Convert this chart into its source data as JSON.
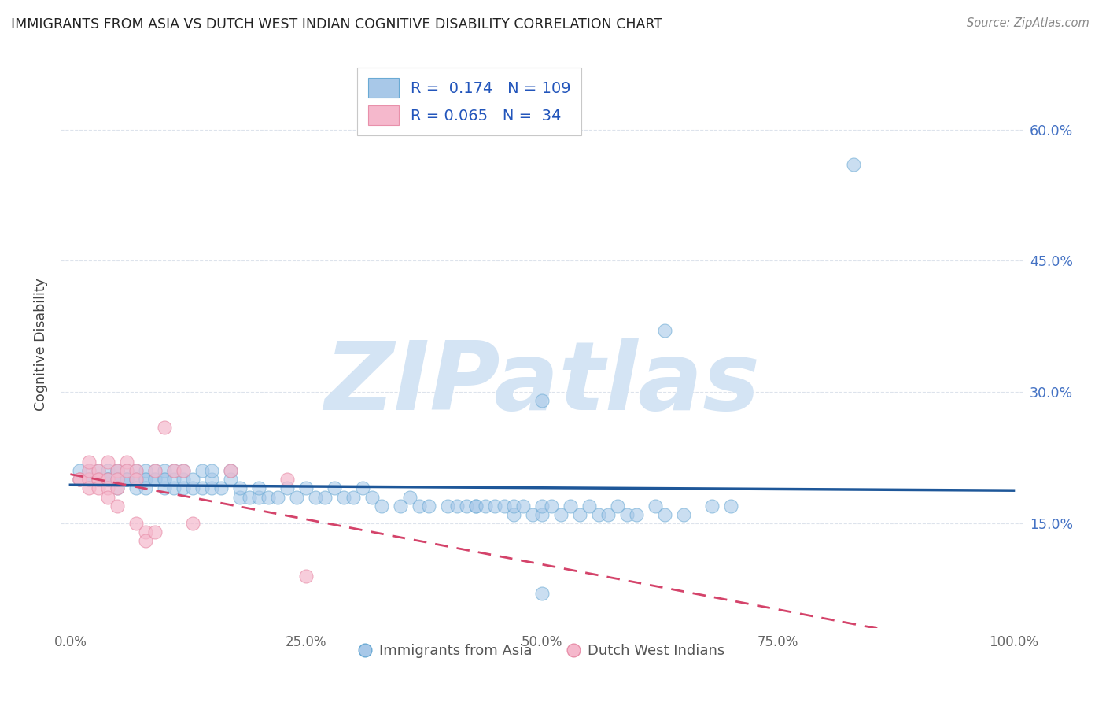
{
  "title": "IMMIGRANTS FROM ASIA VS DUTCH WEST INDIAN COGNITIVE DISABILITY CORRELATION CHART",
  "source": "Source: ZipAtlas.com",
  "ylabel": "Cognitive Disability",
  "right_yticks": [
    0.15,
    0.3,
    0.45,
    0.6
  ],
  "right_yticklabels": [
    "15.0%",
    "30.0%",
    "45.0%",
    "60.0%"
  ],
  "xlim": [
    -0.01,
    1.01
  ],
  "ylim": [
    0.03,
    0.68
  ],
  "blue_R": 0.174,
  "blue_N": 109,
  "pink_R": 0.065,
  "pink_N": 34,
  "blue_scatter_color": "#a8c8e8",
  "pink_scatter_color": "#f5b8cc",
  "blue_edge_color": "#6aaad4",
  "pink_edge_color": "#e890aa",
  "blue_line_color": "#1e5799",
  "pink_line_color": "#d4436a",
  "watermark_color": "#d4e4f4",
  "legend_label_blue": "Immigrants from Asia",
  "legend_label_pink": "Dutch West Indians",
  "grid_color": "#dde3ec",
  "background_color": "#ffffff",
  "xtick_labels": [
    "0.0%",
    "25.0%",
    "50.0%",
    "75.0%",
    "100.0%"
  ],
  "xtick_positions": [
    0.0,
    0.25,
    0.5,
    0.75,
    1.0
  ],
  "legend_text_color": "#2255bb",
  "title_color": "#222222",
  "source_color": "#888888",
  "axis_label_color": "#444444",
  "tick_label_color": "#666666"
}
